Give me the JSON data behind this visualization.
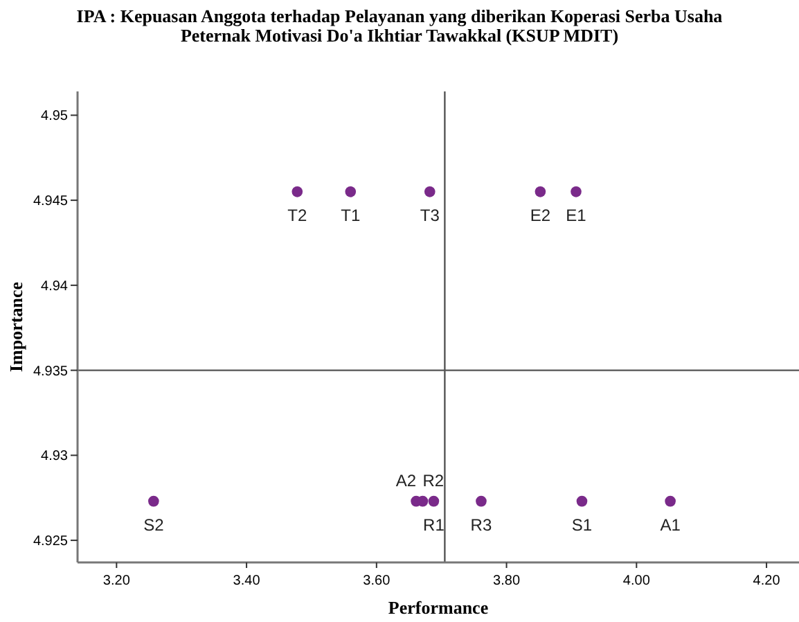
{
  "chart_data": {
    "type": "scatter",
    "title": "IPA : Kepuasan Anggota terhadap Pelayanan yang diberikan Koperasi Serba Usaha Peternak Motivasi Do'a Ikhtiar Tawakkal (KSUP MDIT)",
    "xlabel": "Performance",
    "ylabel": "Importance",
    "x": [
      3.478,
      3.56,
      3.682,
      3.852,
      3.907,
      3.257,
      3.661,
      3.671,
      3.688,
      3.761,
      3.916,
      4.052
    ],
    "values": [
      4.9455,
      4.9455,
      4.9455,
      4.9455,
      4.9455,
      4.9273,
      4.9273,
      4.9273,
      4.9273,
      4.9273,
      4.9273,
      4.9273
    ],
    "value_labels": [
      "T2",
      "T1",
      "T3",
      "E2",
      "E1",
      "S2",
      "A2",
      "R2",
      "R1",
      "R3",
      "S1",
      "A1"
    ],
    "color": "#7a2a8a",
    "marker": "circle",
    "grid": false,
    "xlim": [
      3.14,
      4.25
    ],
    "xticks": [
      {
        "value": 3.2,
        "label": "3.20"
      },
      {
        "value": 3.4,
        "label": "3.40"
      },
      {
        "value": 3.6,
        "label": "3.60"
      },
      {
        "value": 3.8,
        "label": "3.80"
      },
      {
        "value": 4.0,
        "label": "4.00"
      },
      {
        "value": 4.2,
        "label": "4.20"
      }
    ],
    "ylim": [
      4.9237,
      4.9514
    ],
    "yticks": [
      4.925,
      4.93,
      4.935,
      4.94,
      4.945,
      4.95
    ],
    "ref_lines": [
      {
        "axis": "x",
        "value": 3.705,
        "color": "#555555"
      },
      {
        "axis": "y",
        "value": 4.935,
        "color": "#555555"
      }
    ]
  }
}
